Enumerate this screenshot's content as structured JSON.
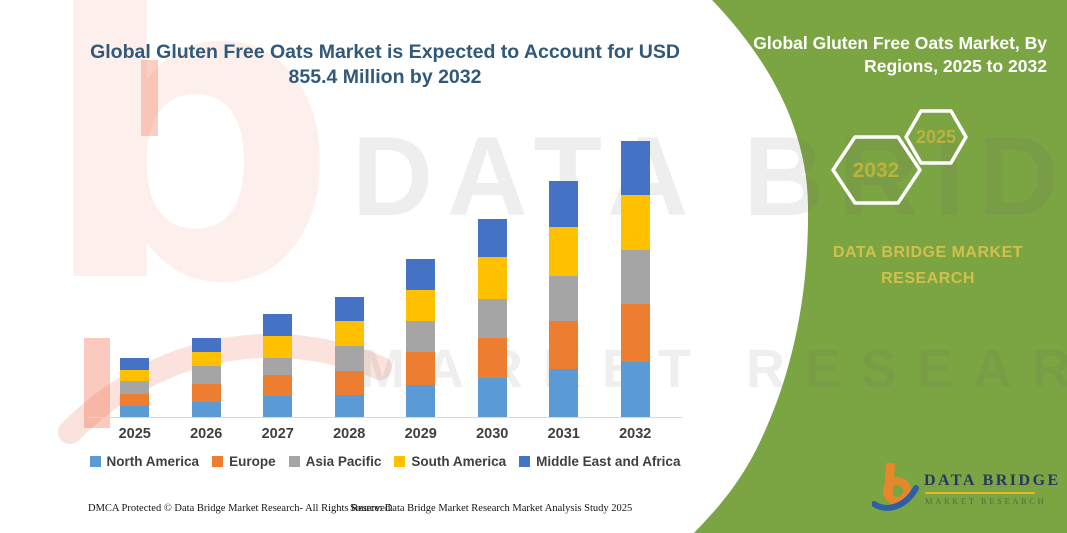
{
  "title": {
    "line1": "Global Gluten Free Oats Market is Expected to Account for USD",
    "line2": "855.4 Million by 2032"
  },
  "panel": {
    "title_line1": "Global Gluten Free Oats Market, By",
    "title_line2": "Regions, 2025 to 2032",
    "hex_large_label": "2032",
    "hex_small_label": "2025",
    "brand_line1": "DATA BRIDGE MARKET",
    "brand_line2": "RESEARCH"
  },
  "watermark": {
    "letter": "b",
    "line1": "DATA BRIDGE",
    "line2": "MARKET RESEARCH"
  },
  "logo": {
    "text": "DATA BRIDGE",
    "subtext": "MARKET RESEARCH"
  },
  "footer": {
    "left": "DMCA Protected © Data Bridge Market Research-  All Rights Reserved.",
    "right": "Source: Data Bridge Market Research  Market Analysis Study 2025"
  },
  "colors": {
    "green": "#7BA443",
    "title-color": "#30597A",
    "panel-gold": "#D2C04B",
    "hex-gold": "#BDB23E",
    "logo-navy": "#2A3564",
    "logo-orange": "#E8862C",
    "logo-blue": "#2C5FA8",
    "underline-gold": "#E7B821"
  },
  "chart_data": {
    "type": "bar",
    "stacked": true,
    "title": "Global Gluten Free Oats Market is Expected to Account for USD 855.4 Million by 2032",
    "unit": "USD Million",
    "categories": [
      "2025",
      "2026",
      "2027",
      "2028",
      "2029",
      "2030",
      "2031",
      "2032"
    ],
    "series": [
      {
        "name": "North America",
        "color": "#5B9BD5",
        "values": [
          34.1,
          47.4,
          66.0,
          69.1,
          98.3,
          122.1,
          147.9,
          171.4
        ]
      },
      {
        "name": "Europe",
        "color": "#ED7D31",
        "values": [
          37.2,
          53.9,
          62.9,
          74.4,
          103.2,
          124.0,
          149.7,
          177.9
        ]
      },
      {
        "name": "Asia Pacific",
        "color": "#A5A5A5",
        "values": [
          40.3,
          56.7,
          53.9,
          77.5,
          95.2,
          118.7,
          139.5,
          168.3
        ]
      },
      {
        "name": "South America",
        "color": "#FFC000",
        "values": [
          34.1,
          44.3,
          67.0,
          77.5,
          98.3,
          131.1,
          151.9,
          170.5
        ]
      },
      {
        "name": "Middle East and Africa",
        "color": "#4472C4",
        "values": [
          37.2,
          42.5,
          70.4,
          73.5,
          94.9,
          117.8,
          142.6,
          167.3
        ]
      }
    ],
    "totals_usd_million": [
      182.9,
      244.8,
      320.2,
      372.0,
      489.9,
      613.7,
      731.6,
      855.4
    ],
    "xlabel": "",
    "ylabel": "",
    "ylim": [
      0,
      900
    ],
    "grid": false,
    "legend_position": "bottom",
    "value_axis_visible": false
  }
}
